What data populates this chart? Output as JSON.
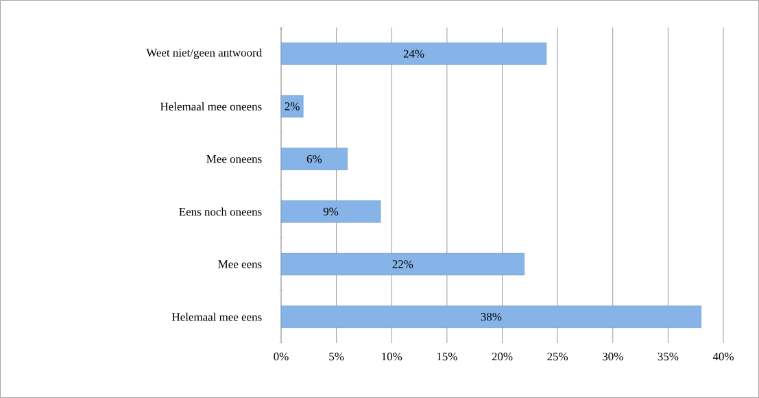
{
  "chart_data": {
    "type": "bar",
    "orientation": "horizontal",
    "categories": [
      "Weet niet/geen antwoord",
      "Helemaal mee oneens",
      "Mee oneens",
      "Eens noch oneens",
      "Mee eens",
      "Helemaal mee eens"
    ],
    "values": [
      24,
      2,
      6,
      9,
      22,
      38
    ],
    "value_labels": [
      "24%",
      "2%",
      "6%",
      "9%",
      "22%",
      "38%"
    ],
    "color": "#86b4e8",
    "xlim": [
      0,
      40
    ],
    "xticks": [
      {
        "value": 0,
        "label": "0%"
      },
      {
        "value": 5,
        "label": "5%"
      },
      {
        "value": 10,
        "label": "10%"
      },
      {
        "value": 15,
        "label": "15%"
      },
      {
        "value": 20,
        "label": "20%"
      },
      {
        "value": 25,
        "label": "25%"
      },
      {
        "value": 30,
        "label": "30%"
      },
      {
        "value": 35,
        "label": "35%"
      },
      {
        "value": 40,
        "label": "40%"
      }
    ],
    "grid": "x"
  }
}
